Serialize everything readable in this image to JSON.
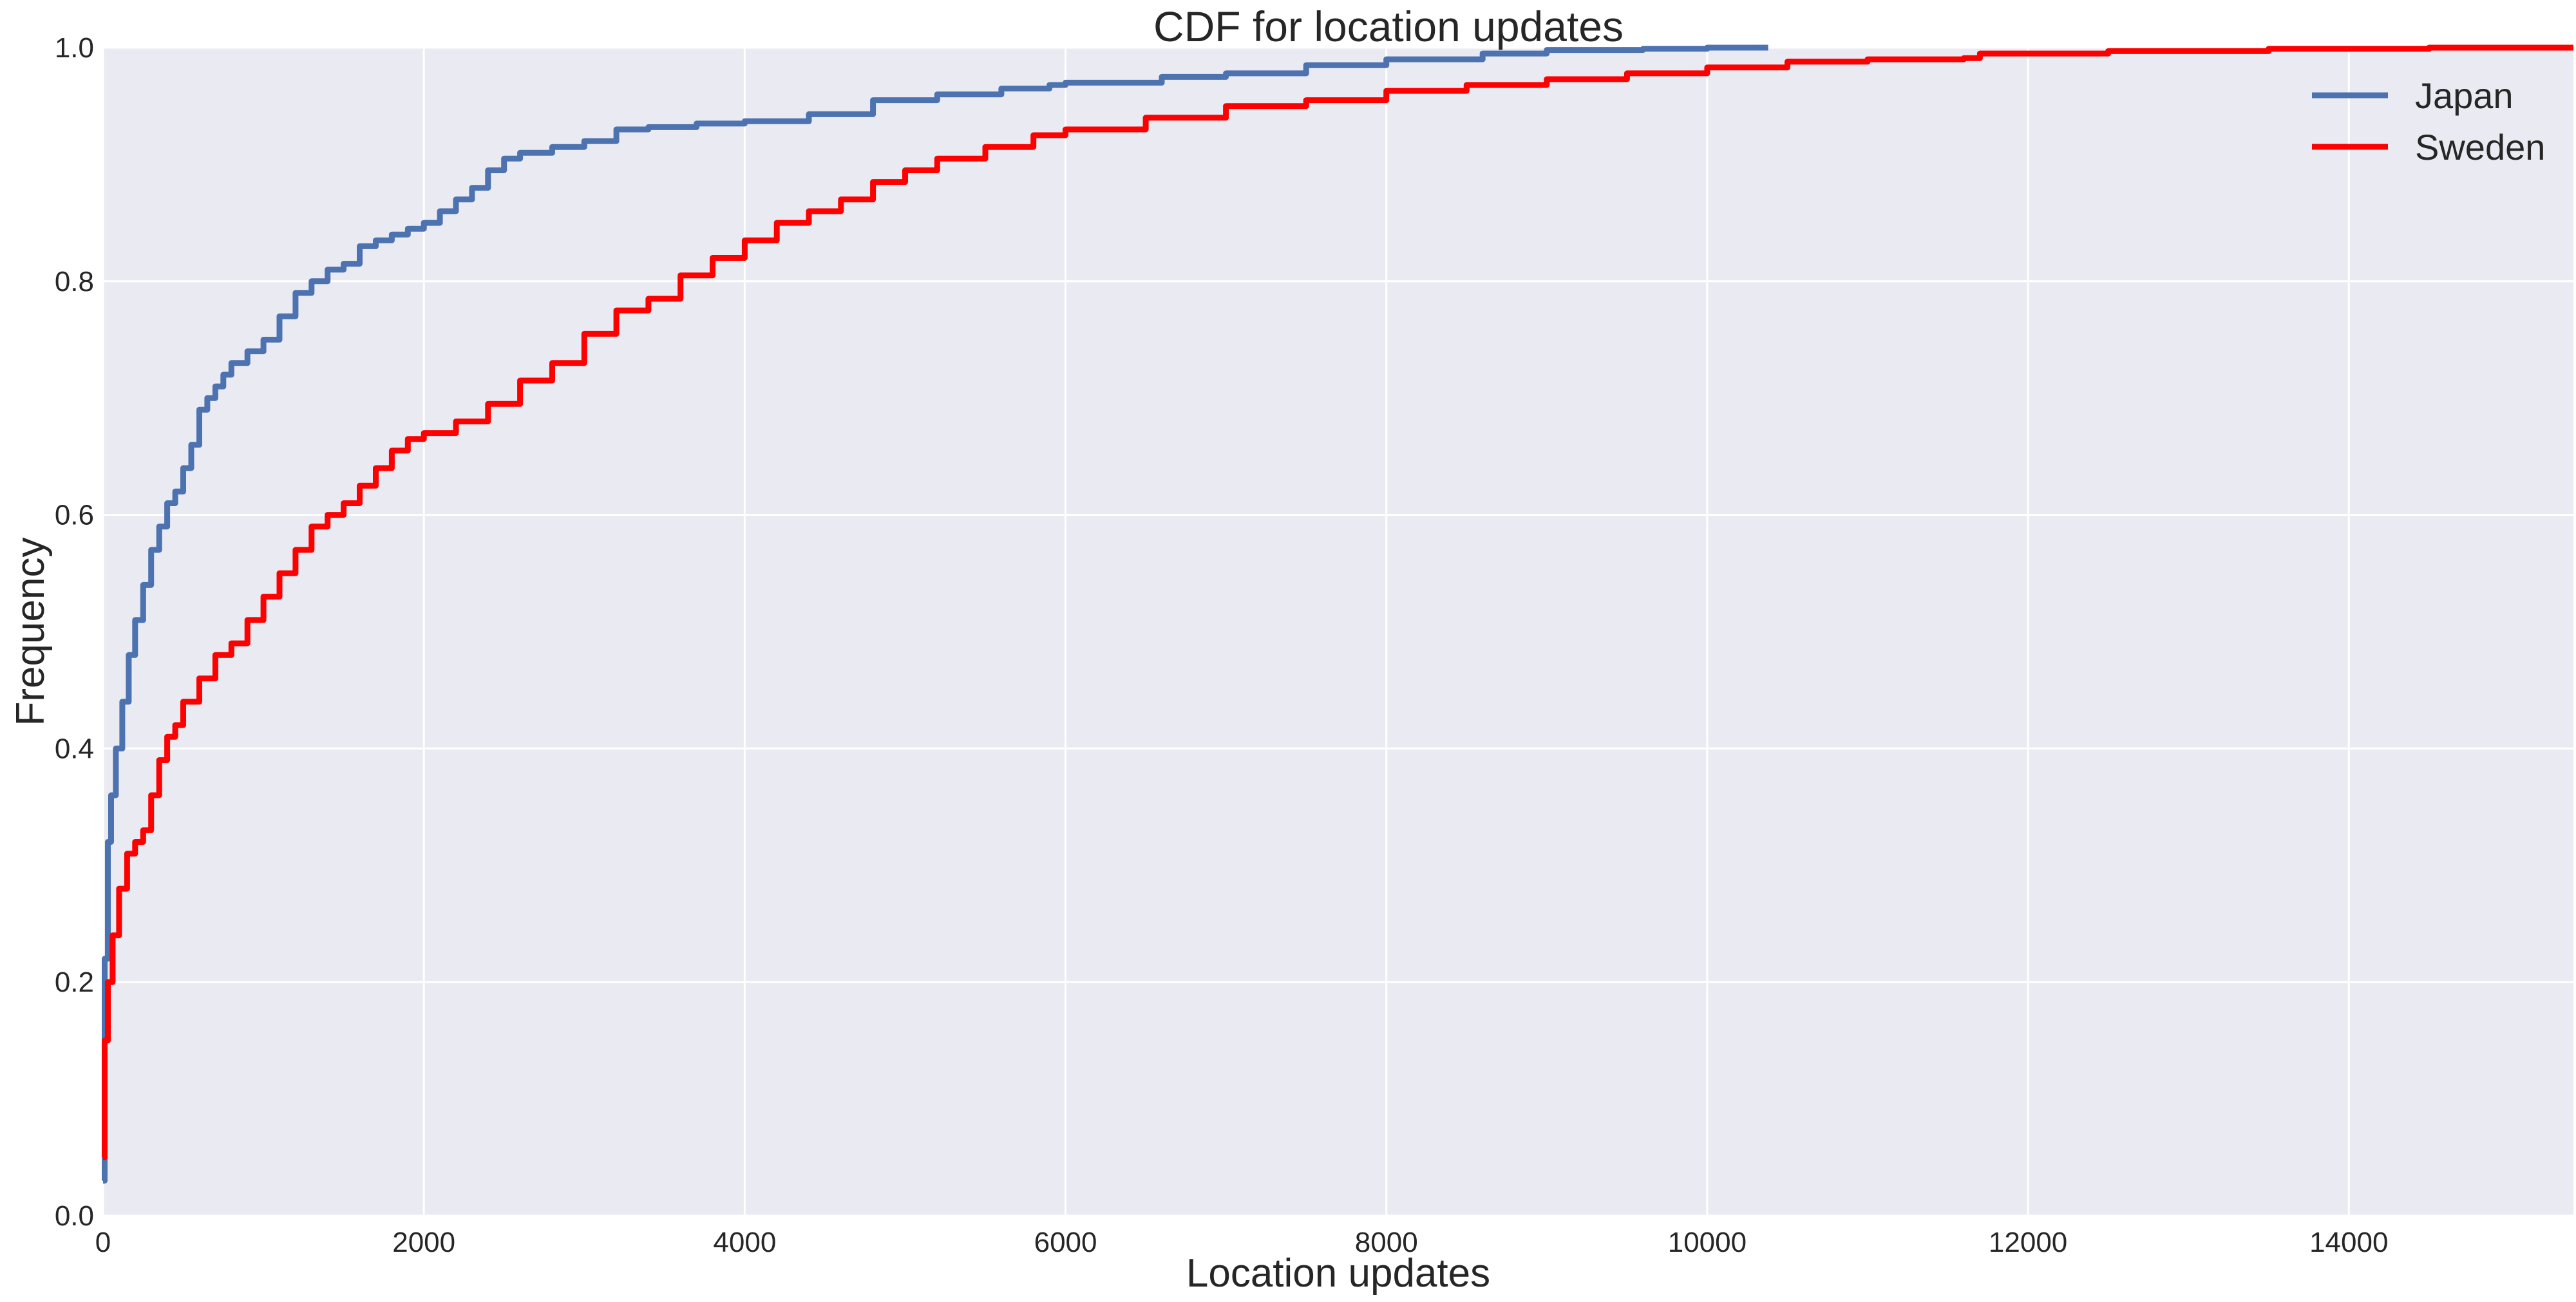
{
  "chart_data": {
    "type": "line",
    "title": "CDF for location updates",
    "xlabel": "Location updates",
    "ylabel": "Frequency",
    "xlim": [
      0,
      15400
    ],
    "ylim": [
      0.0,
      1.0
    ],
    "x_ticks": [
      "0",
      "2000",
      "4000",
      "6000",
      "8000",
      "10000",
      "12000",
      "14000"
    ],
    "y_ticks": [
      "0.0",
      "0.2",
      "0.4",
      "0.6",
      "0.8",
      "1.0"
    ],
    "grid": true,
    "legend_position": "top-right",
    "background_color": "#EAEAF2",
    "grid_color": "#FFFFFF",
    "series": [
      {
        "name": "Japan",
        "color": "#4C72B0",
        "x": [
          0,
          10,
          30,
          50,
          80,
          120,
          160,
          200,
          250,
          300,
          350,
          400,
          450,
          500,
          550,
          600,
          650,
          700,
          750,
          800,
          900,
          1000,
          1100,
          1200,
          1300,
          1400,
          1500,
          1600,
          1700,
          1800,
          1900,
          2000,
          2100,
          2200,
          2300,
          2400,
          2500,
          2600,
          2800,
          3000,
          3200,
          3400,
          3700,
          4000,
          4400,
          4800,
          5200,
          5600,
          5900,
          6000,
          6600,
          7000,
          7500,
          8000,
          8600,
          9000,
          9600,
          10000,
          10380
        ],
        "y": [
          0.03,
          0.22,
          0.32,
          0.36,
          0.4,
          0.44,
          0.48,
          0.51,
          0.54,
          0.57,
          0.59,
          0.61,
          0.62,
          0.64,
          0.66,
          0.69,
          0.7,
          0.71,
          0.72,
          0.73,
          0.74,
          0.75,
          0.77,
          0.79,
          0.8,
          0.81,
          0.815,
          0.83,
          0.835,
          0.84,
          0.845,
          0.85,
          0.86,
          0.87,
          0.88,
          0.895,
          0.905,
          0.91,
          0.915,
          0.92,
          0.93,
          0.932,
          0.935,
          0.937,
          0.943,
          0.955,
          0.96,
          0.965,
          0.968,
          0.97,
          0.975,
          0.978,
          0.985,
          0.99,
          0.995,
          0.998,
          0.999,
          1.0,
          1.0
        ]
      },
      {
        "name": "Sweden",
        "color": "#FF0000",
        "x": [
          0,
          10,
          30,
          60,
          100,
          150,
          200,
          250,
          300,
          350,
          400,
          450,
          500,
          600,
          700,
          800,
          900,
          1000,
          1100,
          1200,
          1300,
          1400,
          1500,
          1600,
          1700,
          1800,
          1900,
          2000,
          2200,
          2400,
          2600,
          2800,
          3000,
          3200,
          3400,
          3600,
          3800,
          4000,
          4200,
          4400,
          4600,
          4800,
          5000,
          5200,
          5500,
          5800,
          6000,
          6500,
          7000,
          7500,
          8000,
          8500,
          9000,
          9500,
          10000,
          10500,
          11000,
          11600,
          11700,
          12500,
          13500,
          14500,
          15400
        ],
        "y": [
          0.05,
          0.15,
          0.2,
          0.24,
          0.28,
          0.31,
          0.32,
          0.33,
          0.36,
          0.39,
          0.41,
          0.42,
          0.44,
          0.46,
          0.48,
          0.49,
          0.51,
          0.53,
          0.55,
          0.57,
          0.59,
          0.6,
          0.61,
          0.625,
          0.64,
          0.655,
          0.665,
          0.67,
          0.68,
          0.695,
          0.715,
          0.73,
          0.755,
          0.775,
          0.785,
          0.805,
          0.82,
          0.835,
          0.85,
          0.86,
          0.87,
          0.885,
          0.895,
          0.905,
          0.915,
          0.925,
          0.93,
          0.94,
          0.95,
          0.955,
          0.963,
          0.968,
          0.973,
          0.978,
          0.983,
          0.988,
          0.99,
          0.991,
          0.995,
          0.997,
          0.999,
          1.0,
          1.0
        ]
      }
    ]
  }
}
